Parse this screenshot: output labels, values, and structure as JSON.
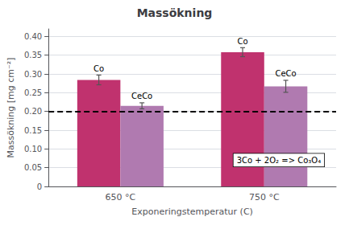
{
  "chart_data": {
    "type": "bar",
    "title": "Massökning",
    "xlabel": "Exponeringstemperatur (C)",
    "ylabel": "Massökning [mg cm⁻²]",
    "categories": [
      "650 °C",
      "750 °C"
    ],
    "series": [
      {
        "name": "Co",
        "color": "#c0326e",
        "values": [
          0.284,
          0.358
        ],
        "errors": [
          0.013,
          0.012
        ]
      },
      {
        "name": "CeCo",
        "color": "#b07ab0",
        "values": [
          0.215,
          0.267
        ],
        "errors": [
          0.008,
          0.016
        ]
      }
    ],
    "reference_line": 0.2,
    "annotation": "3Co + 2O₂ => Co₃O₄",
    "ylim": [
      0,
      0.42
    ],
    "yticks": [
      0,
      0.05,
      {
        "value": 0.1,
        "label": "0.10"
      },
      0.15,
      {
        "value": 0.2,
        "label": "0.20"
      },
      0.25,
      {
        "value": 0.3,
        "label": "0.30"
      },
      0.35,
      {
        "value": 0.4,
        "label": "0.40"
      }
    ],
    "grid": true
  }
}
